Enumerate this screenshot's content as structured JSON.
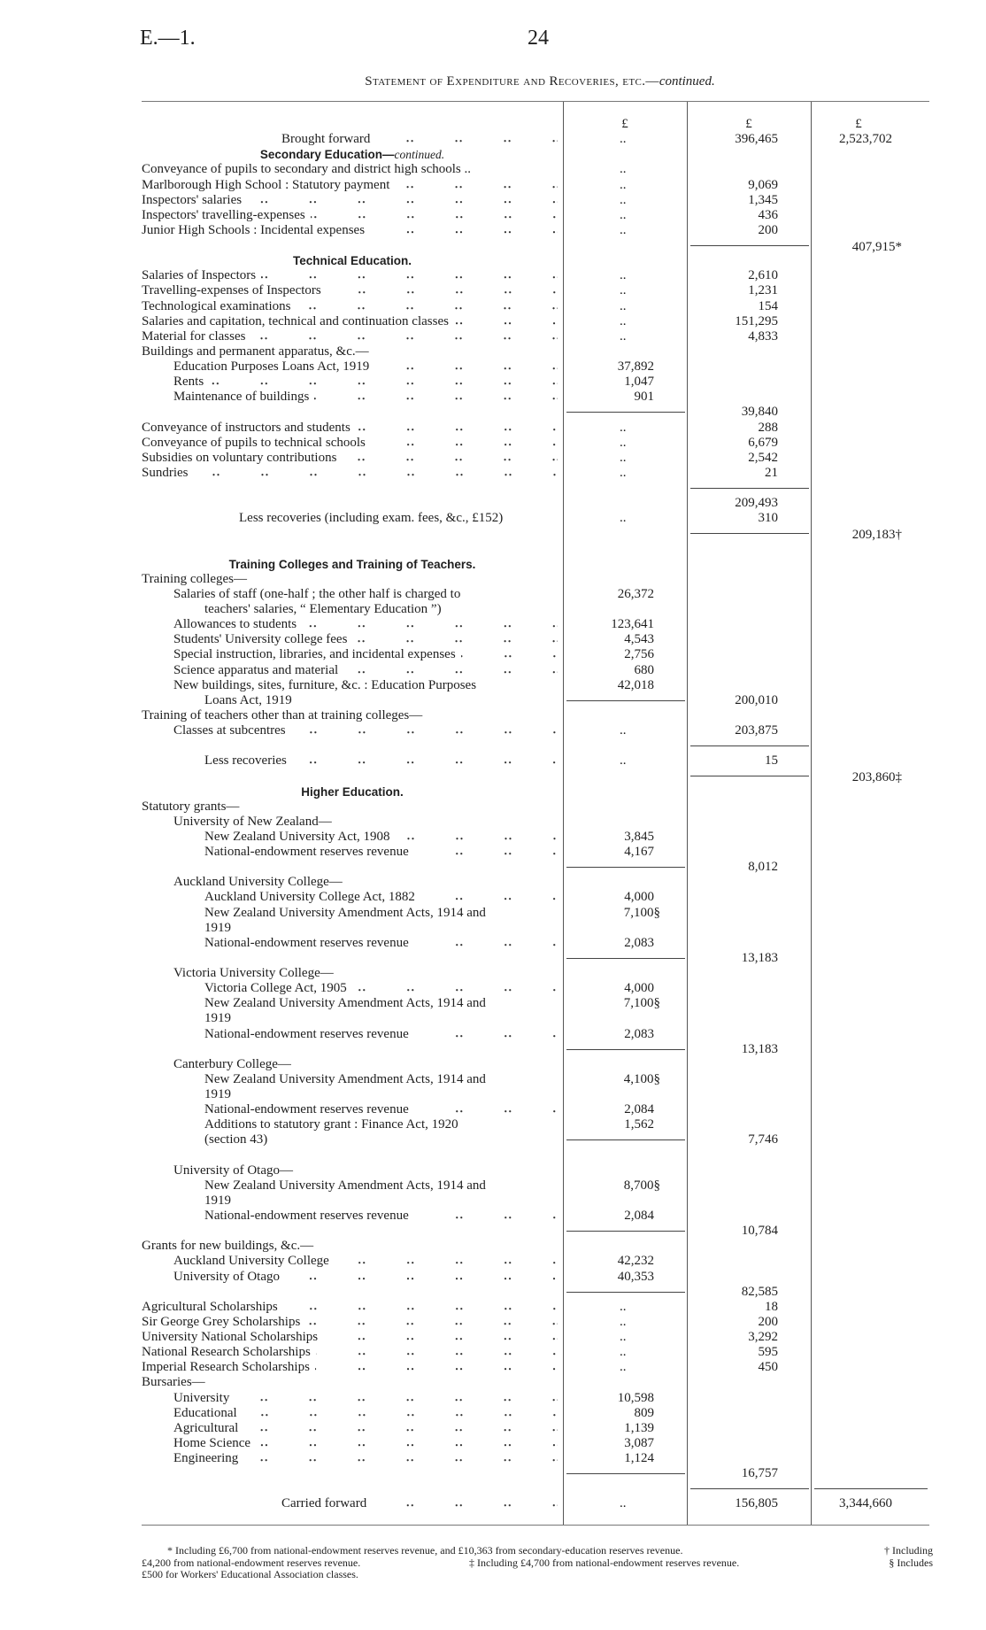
{
  "header": {
    "doc_code": "E.—1.",
    "page_number": "24",
    "title": "Statement of Expenditure and Recoveries, etc.—",
    "title_italic": "continued."
  },
  "currency": {
    "c1": "£",
    "c2": "£",
    "c3": "£"
  },
  "rows": [
    {
      "t": "Brought forward",
      "i": 4,
      "l": true,
      "c1": "..",
      "c2": "396,465",
      "c3": "2,523,702"
    },
    {
      "h": "Secondary Education—",
      "hi": "continued."
    },
    {
      "t": "Conveyance of pupils to secondary and district high schools ..",
      "i": 0,
      "c1": ".."
    },
    {
      "t": "Marlborough High School : Statutory payment",
      "i": 0,
      "l": true,
      "c1": "..",
      "c2": "9,069"
    },
    {
      "t": "Inspectors' salaries",
      "i": 0,
      "l": true,
      "c1": "..",
      "c2": "1,345"
    },
    {
      "t": "Inspectors' travelling-expenses",
      "i": 0,
      "l": true,
      "c1": "..",
      "c2": "436"
    },
    {
      "t": "Junior High Schools : Incidental expenses",
      "i": 0,
      "l": true,
      "c1": "..",
      "c2": "200"
    },
    {
      "r": [
        "c2"
      ],
      "c3": "407,915*"
    },
    {
      "h": "Technical Education."
    },
    {
      "t": "Salaries of Inspectors",
      "i": 0,
      "l": true,
      "c1": "..",
      "c2": "2,610"
    },
    {
      "t": "Travelling-expenses of Inspectors",
      "i": 0,
      "l": true,
      "c1": "..",
      "c2": "1,231"
    },
    {
      "t": "Technological examinations",
      "i": 0,
      "l": true,
      "c1": "..",
      "c2": "154"
    },
    {
      "t": "Salaries and capitation, technical and continuation classes",
      "i": 0,
      "l": true,
      "c1": "..",
      "c2": "151,295"
    },
    {
      "t": "Material for classes",
      "i": 0,
      "l": true,
      "c1": "..",
      "c2": "4,833"
    },
    {
      "t": "Buildings and permanent apparatus, &c.—",
      "i": 0
    },
    {
      "t": "Education Purposes Loans Act, 1919",
      "i": 1,
      "l": true,
      "c1": "37,892"
    },
    {
      "t": "Rents",
      "i": 1,
      "l": true,
      "c1": "1,047"
    },
    {
      "t": "Maintenance of buildings",
      "i": 1,
      "l": true,
      "c1": "901"
    },
    {
      "r": [
        "c1"
      ],
      "c2": "39,840"
    },
    {
      "t": "Conveyance of instructors and students",
      "i": 0,
      "l": true,
      "c1": "..",
      "c2": "288"
    },
    {
      "t": "Conveyance of pupils to technical schools",
      "i": 0,
      "l": true,
      "c1": "..",
      "c2": "6,679"
    },
    {
      "t": "Subsidies on voluntary contributions",
      "i": 0,
      "l": true,
      "c1": "..",
      "c2": "2,542"
    },
    {
      "t": "Sundries",
      "i": 0,
      "l": true,
      "c1": "..",
      "c2": "21"
    },
    {
      "r": [
        "c2"
      ]
    },
    {
      "c2": "209,493"
    },
    {
      "t": "Less recoveries (including exam. fees, &c., £152)",
      "i": 3,
      "c1": "..",
      "c2": "310"
    },
    {
      "r": [
        "c2"
      ],
      "c3": "209,183†"
    },
    {},
    {
      "h": "Training Colleges and Training of Teachers."
    },
    {
      "t": "Training colleges—",
      "i": 0
    },
    {
      "t": "Salaries of staff (one-half ; the other half is charged to",
      "i": 1,
      "c1": "26,372"
    },
    {
      "t": "teachers' salaries, “ Elementary Education ”)",
      "i": 2
    },
    {
      "t": "Allowances to students",
      "i": 1,
      "l": true,
      "c1": "123,641"
    },
    {
      "t": "Students' University college fees",
      "i": 1,
      "l": true,
      "c1": "4,543"
    },
    {
      "t": "Special instruction, libraries, and incidental expenses",
      "i": 1,
      "l": true,
      "c1": "2,756"
    },
    {
      "t": "Science apparatus and material",
      "i": 1,
      "l": true,
      "c1": "680"
    },
    {
      "t": "New buildings, sites, furniture, &c. : Education Purposes",
      "i": 1,
      "c1": "42,018"
    },
    {
      "t": "Loans Act, 1919",
      "i": 2,
      "r": [
        "c1"
      ],
      "c2": "200,010"
    },
    {
      "t": "Training of teachers other than at training colleges—",
      "i": 0
    },
    {
      "t": "Classes at subcentres",
      "i": 1,
      "l": true,
      "c1": "..",
      "c2": "203,875"
    },
    {
      "r": [
        "c2"
      ]
    },
    {
      "t": "Less recoveries",
      "i": 2,
      "l": true,
      "c1": "..",
      "c2": "15"
    },
    {
      "r": [
        "c2"
      ],
      "c3": "203,860‡"
    },
    {
      "h": "Higher Education."
    },
    {
      "t": "Statutory grants—",
      "i": 0
    },
    {
      "t": "University of New Zealand—",
      "i": 1
    },
    {
      "t": "New Zealand University Act, 1908",
      "i": 2,
      "l": true,
      "c1": "3,845"
    },
    {
      "t": "National-endowment reserves revenue",
      "i": 2,
      "l": true,
      "c1": "4,167"
    },
    {
      "r": [
        "c1"
      ],
      "c2": "8,012"
    },
    {
      "t": "Auckland University College—",
      "i": 1
    },
    {
      "t": "Auckland University College Act, 1882",
      "i": 2,
      "l": true,
      "c1": "4,000"
    },
    {
      "t": "New Zealand University Amendment Acts, 1914 and",
      "i": 2,
      "c1": "7,100§"
    },
    {
      "t": "1919",
      "i": 2
    },
    {
      "t": "National-endowment reserves revenue",
      "i": 2,
      "l": true,
      "c1": "2,083"
    },
    {
      "r": [
        "c1"
      ],
      "c2": "13,183"
    },
    {
      "t": "Victoria University College—",
      "i": 1
    },
    {
      "t": "Victoria College Act, 1905",
      "i": 2,
      "l": true,
      "c1": "4,000"
    },
    {
      "t": "New Zealand University Amendment Acts, 1914 and",
      "i": 2,
      "c1": "7,100§"
    },
    {
      "t": "1919",
      "i": 2
    },
    {
      "t": "National-endowment reserves revenue",
      "i": 2,
      "l": true,
      "c1": "2,083"
    },
    {
      "r": [
        "c1"
      ],
      "c2": "13,183"
    },
    {
      "t": "Canterbury College—",
      "i": 1
    },
    {
      "t": "New Zealand University Amendment Acts, 1914 and",
      "i": 2,
      "c1": "4,100§"
    },
    {
      "t": "1919",
      "i": 2
    },
    {
      "t": "National-endowment reserves revenue",
      "i": 2,
      "l": true,
      "c1": "2,084"
    },
    {
      "t": "Additions to statutory grant : Finance Act, 1920",
      "i": 2,
      "c1": "1,562"
    },
    {
      "t": "(section 43)",
      "i": 2,
      "r": [
        "c1"
      ],
      "c2": "7,746"
    },
    {},
    {
      "t": "University of Otago—",
      "i": 1
    },
    {
      "t": "New Zealand University Amendment Acts, 1914 and",
      "i": 2,
      "c1": "8,700§"
    },
    {
      "t": "1919",
      "i": 2
    },
    {
      "t": "National-endowment reserves revenue",
      "i": 2,
      "l": true,
      "c1": "2,084"
    },
    {
      "r": [
        "c1"
      ],
      "c2": "10,784"
    },
    {
      "t": "Grants for new buildings, &c.—",
      "i": 0
    },
    {
      "t": "Auckland University College",
      "i": 1,
      "l": true,
      "c1": "42,232"
    },
    {
      "t": "University of Otago",
      "i": 1,
      "l": true,
      "c1": "40,353"
    },
    {
      "r": [
        "c1"
      ],
      "c2": "82,585"
    },
    {
      "t": "Agricultural Scholarships",
      "i": 0,
      "l": true,
      "c1": "..",
      "c2": "18"
    },
    {
      "t": "Sir George Grey Scholarships",
      "i": 0,
      "l": true,
      "c1": "..",
      "c2": "200"
    },
    {
      "t": "University National Scholarships",
      "i": 0,
      "l": true,
      "c1": "..",
      "c2": "3,292"
    },
    {
      "t": "National Research Scholarships",
      "i": 0,
      "l": true,
      "c1": "..",
      "c2": "595"
    },
    {
      "t": "Imperial Research Scholarships",
      "i": 0,
      "l": true,
      "c1": "..",
      "c2": "450"
    },
    {
      "t": "Bursaries—",
      "i": 0
    },
    {
      "t": "University",
      "i": 1,
      "l": true,
      "c1": "10,598"
    },
    {
      "t": "Educational",
      "i": 1,
      "l": true,
      "c1": "809"
    },
    {
      "t": "Agricultural",
      "i": 1,
      "l": true,
      "c1": "1,139"
    },
    {
      "t": "Home Science",
      "i": 1,
      "l": true,
      "c1": "3,087"
    },
    {
      "t": "Engineering",
      "i": 1,
      "l": true,
      "c1": "1,124"
    },
    {
      "r": [
        "c1"
      ],
      "c2": "16,757"
    },
    {
      "r": [
        "c2",
        "c3"
      ]
    },
    {
      "t": "Carried forward",
      "i": 4,
      "l": true,
      "c1": "..",
      "c2": "156,805",
      "c3": "3,344,660"
    }
  ],
  "footnotes": {
    "star": "* Including £6,700 from national-endowment reserves revenue, and £10,363 from secondary-education reserves revenue.",
    "dagger_a": "† Including",
    "dagger_b": "£4,200 from national-endowment reserves revenue.",
    "ddagger": "‡ Including £4,700 from national-endowment reserves revenue.",
    "section_a": "§ Includes",
    "section_b": "£500 for Workers' Educational Association classes."
  }
}
